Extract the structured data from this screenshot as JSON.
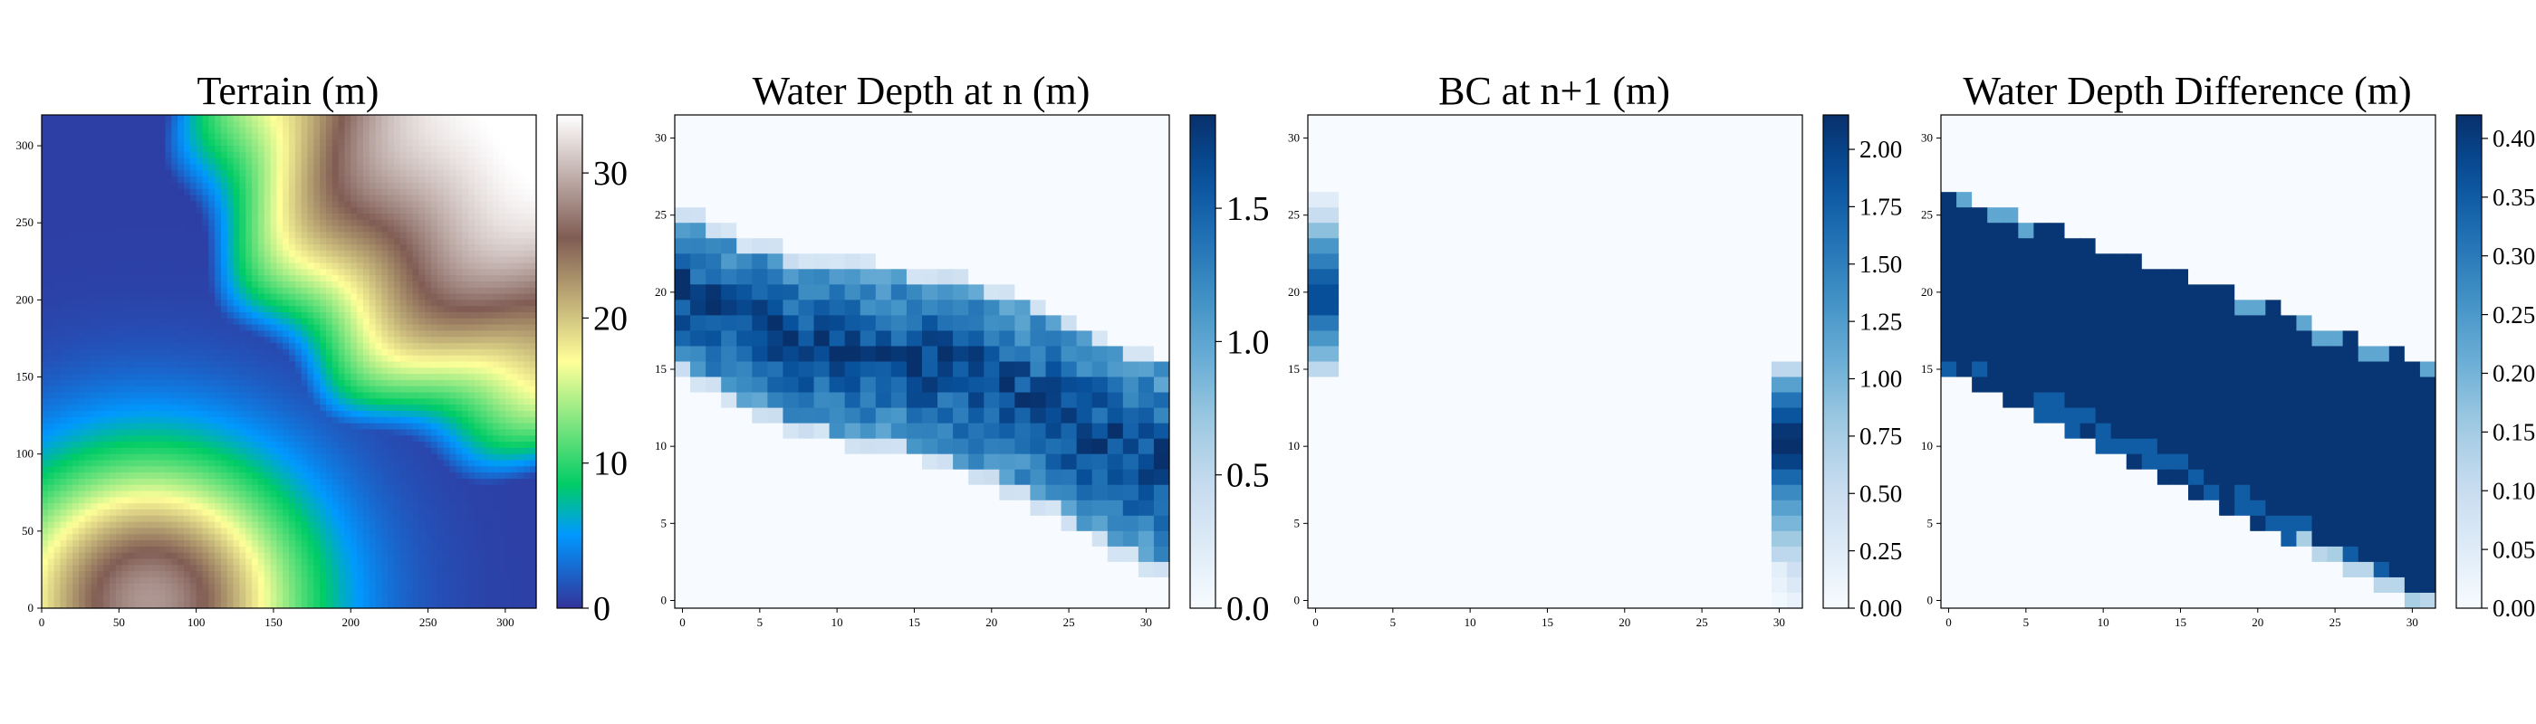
{
  "figure": {
    "panels": [
      {
        "title": "Terrain (m)",
        "tick_labels_x": [
          "0",
          "50",
          "100",
          "150",
          "200",
          "250",
          "300"
        ],
        "tick_labels_y": [
          "0",
          "50",
          "100",
          "150",
          "200",
          "250",
          "300"
        ],
        "colorbar_ticks": [
          "0",
          "10",
          "20",
          "30"
        ]
      },
      {
        "title": "Water Depth at n (m)",
        "tick_labels_x": [
          "0",
          "5",
          "10",
          "15",
          "20",
          "25",
          "30"
        ],
        "tick_labels_y": [
          "0",
          "5",
          "10",
          "15",
          "20",
          "25",
          "30"
        ],
        "colorbar_ticks": [
          "0.0",
          "0.5",
          "1.0",
          "1.5"
        ]
      },
      {
        "title": "BC at n+1 (m)",
        "tick_labels_x": [
          "0",
          "5",
          "10",
          "15",
          "20",
          "25",
          "30"
        ],
        "tick_labels_y": [
          "0",
          "5",
          "10",
          "15",
          "20",
          "25",
          "30"
        ],
        "colorbar_ticks": [
          "0.00",
          "0.25",
          "0.50",
          "0.75",
          "1.00",
          "1.25",
          "1.50",
          "1.75",
          "2.00"
        ]
      },
      {
        "title": "Water Depth Difference (m)",
        "tick_labels_x": [
          "0",
          "5",
          "10",
          "15",
          "20",
          "25",
          "30"
        ],
        "tick_labels_y": [
          "0",
          "5",
          "10",
          "15",
          "20",
          "25",
          "30"
        ],
        "colorbar_ticks": [
          "0.00",
          "0.05",
          "0.10",
          "0.15",
          "0.20",
          "0.25",
          "0.30",
          "0.35",
          "0.40"
        ]
      }
    ]
  },
  "chart_data": [
    {
      "type": "heatmap",
      "title": "Terrain (m)",
      "colormap": "terrain",
      "xlim": [
        0,
        320
      ],
      "ylim": [
        320,
        0
      ],
      "xticks": [
        0,
        50,
        100,
        150,
        200,
        250,
        300
      ],
      "yticks": [
        0,
        50,
        100,
        150,
        200,
        250,
        300
      ],
      "colorbar": {
        "min": 0,
        "max": 34,
        "ticks": [
          0,
          10,
          20,
          30
        ]
      },
      "field": {
        "corner_ridge_peak": 34,
        "corner_ridge_center": [
          320,
          0
        ],
        "valley_min": 0.5,
        "lower_hill_peak": 28,
        "lower_hill_center": [
          70,
          315
        ]
      }
    },
    {
      "type": "heatmap",
      "title": "Water Depth at n (m)",
      "colormap": "Blues",
      "grid": [
        32,
        32
      ],
      "xlim": [
        -0.5,
        31.5
      ],
      "ylim": [
        31.5,
        -0.5
      ],
      "xticks": [
        0,
        5,
        10,
        15,
        20,
        25,
        30
      ],
      "yticks": [
        0,
        5,
        10,
        15,
        20,
        25,
        30
      ],
      "colorbar": {
        "min": 0,
        "max": 1.85,
        "ticks": [
          0,
          0.5,
          1.0,
          1.5
        ]
      },
      "band": {
        "center_row_at_col0": 11,
        "center_row_at_col31": 21.5,
        "peak_depth": 1.85
      }
    },
    {
      "type": "heatmap",
      "title": "BC at n+1 (m)",
      "colormap": "Blues",
      "grid": [
        32,
        32
      ],
      "xlim": [
        -0.5,
        31.5
      ],
      "ylim": [
        31.5,
        -0.5
      ],
      "xticks": [
        0,
        5,
        10,
        15,
        20,
        25,
        30
      ],
      "yticks": [
        0,
        5,
        10,
        15,
        20,
        25,
        30
      ],
      "colorbar": {
        "min": 0,
        "max": 2.15,
        "ticks": [
          0,
          0.25,
          0.5,
          0.75,
          1.0,
          1.25,
          1.5,
          1.75,
          2.0
        ]
      },
      "left_boundary": {
        "cols": [
          0,
          1
        ],
        "rows": [
          5,
          6,
          7,
          8,
          9,
          10,
          11,
          12,
          13,
          14,
          15,
          16
        ],
        "values": [
          0.25,
          0.5,
          0.9,
          1.3,
          1.5,
          1.75,
          1.9,
          1.9,
          1.55,
          1.3,
          1.0,
          0.6
        ]
      },
      "right_boundary": {
        "cols": [
          30,
          31
        ],
        "rows": [
          16,
          17,
          18,
          19,
          20,
          21,
          22,
          23,
          24,
          25,
          26,
          27,
          28,
          29,
          30,
          31
        ],
        "values": [
          0.6,
          1.2,
          1.6,
          1.85,
          2.1,
          2.15,
          2.0,
          1.7,
          1.4,
          1.2,
          1.0,
          0.8,
          0.6,
          0.45,
          0.3,
          0.15
        ]
      }
    },
    {
      "type": "heatmap",
      "title": "Water Depth Difference (m)",
      "colormap": "Blues",
      "grid": [
        32,
        32
      ],
      "xlim": [
        -0.5,
        31.5
      ],
      "ylim": [
        31.5,
        -0.5
      ],
      "xticks": [
        0,
        5,
        10,
        15,
        20,
        25,
        30
      ],
      "yticks": [
        0,
        5,
        10,
        15,
        20,
        25,
        30
      ],
      "colorbar": {
        "min": 0,
        "max": 0.42,
        "ticks": [
          0,
          0.05,
          0.1,
          0.15,
          0.2,
          0.25,
          0.3,
          0.35,
          0.4
        ]
      },
      "band": {
        "top_row_at_col0": 5,
        "top_row_at_col31": 16,
        "bottom_row_at_col0": 16,
        "bottom_row_at_col31": 31,
        "value": 0.41
      }
    }
  ]
}
